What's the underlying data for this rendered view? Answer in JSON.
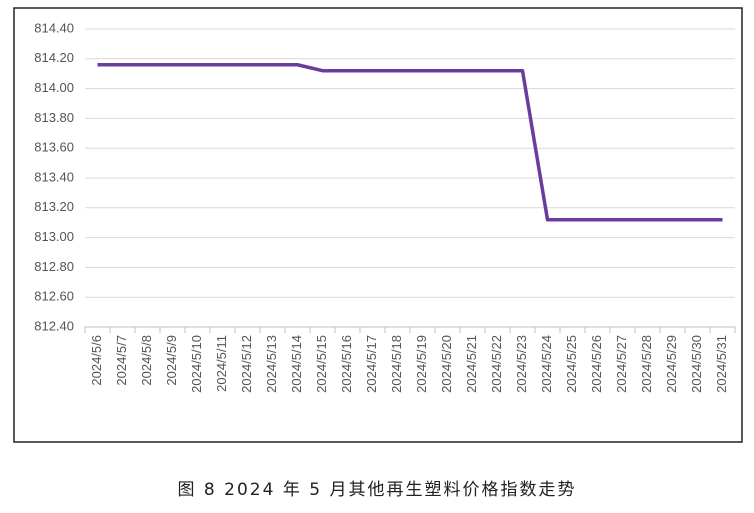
{
  "chart_data": {
    "type": "line",
    "title": "图 8  2024 年 5 月其他再生塑料价格指数走势",
    "categories": [
      "2024/5/6",
      "2024/5/7",
      "2024/5/8",
      "2024/5/9",
      "2024/5/10",
      "2024/5/11",
      "2024/5/12",
      "2024/5/13",
      "2024/5/14",
      "2024/5/15",
      "2024/5/16",
      "2024/5/17",
      "2024/5/18",
      "2024/5/19",
      "2024/5/20",
      "2024/5/21",
      "2024/5/22",
      "2024/5/23",
      "2024/5/24",
      "2024/5/25",
      "2024/5/26",
      "2024/5/27",
      "2024/5/28",
      "2024/5/29",
      "2024/5/30",
      "2024/5/31"
    ],
    "values": [
      814.16,
      814.16,
      814.16,
      814.16,
      814.16,
      814.16,
      814.16,
      814.16,
      814.16,
      814.12,
      814.12,
      814.12,
      814.12,
      814.12,
      814.12,
      814.12,
      814.12,
      814.12,
      813.12,
      813.12,
      813.12,
      813.12,
      813.12,
      813.12,
      813.12,
      813.12
    ],
    "color": "#6a3c9c",
    "ylim": [
      812.4,
      814.4
    ],
    "yticks": [
      {
        "value": 812.4,
        "label": "812.40"
      },
      {
        "value": 812.6,
        "label": "812.60"
      },
      {
        "value": 812.8,
        "label": "812.80"
      },
      {
        "value": 813.0,
        "label": "813.00"
      },
      {
        "value": 813.2,
        "label": "813.20"
      },
      {
        "value": 813.4,
        "label": "813.40"
      },
      {
        "value": 813.6,
        "label": "813.60"
      },
      {
        "value": 813.8,
        "label": "813.80"
      },
      {
        "value": 814.0,
        "label": "814.00"
      },
      {
        "value": 814.2,
        "label": "814.20"
      },
      {
        "value": 814.4,
        "label": "814.40"
      }
    ],
    "grid": true
  }
}
